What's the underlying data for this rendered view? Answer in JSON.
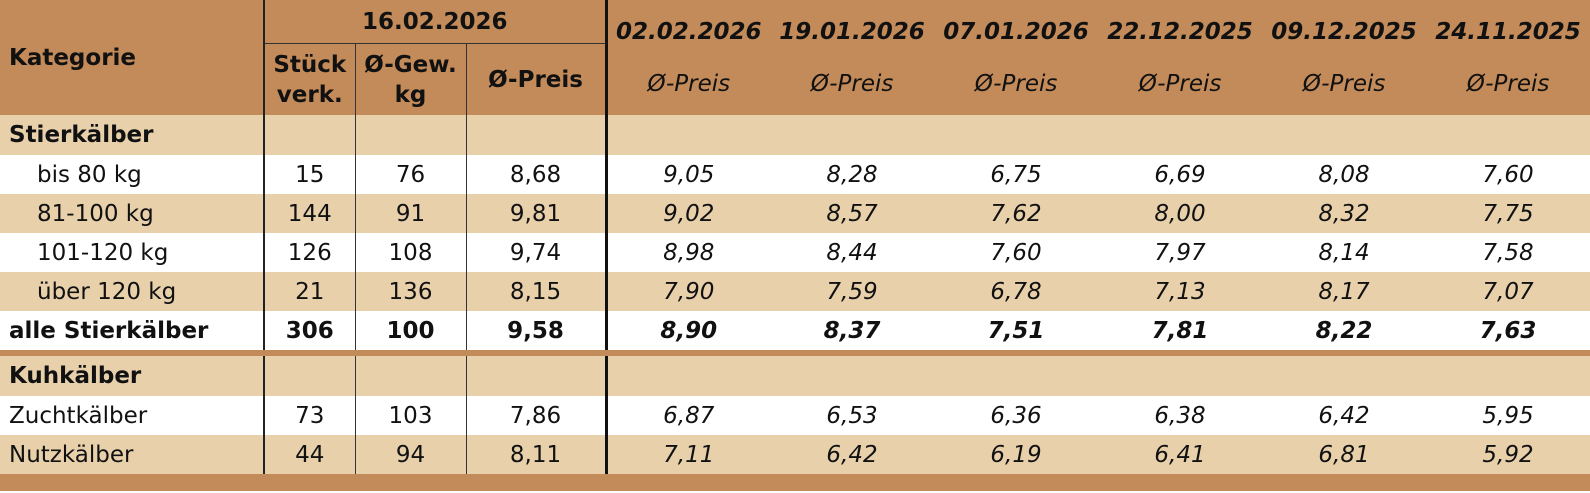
{
  "header": {
    "category": "Kategorie",
    "current_date": "16.02.2026",
    "current_columns": [
      "Stück\nverk.",
      "Ø-Gew.\nkg",
      "Ø-Preis"
    ],
    "past_columns": [
      {
        "date": "02.02.2026",
        "label": "Ø-Preis"
      },
      {
        "date": "19.01.2026",
        "label": "Ø-Preis"
      },
      {
        "date": "07.01.2026",
        "label": "Ø-Preis"
      },
      {
        "date": "22.12.2025",
        "label": "Ø-Preis"
      },
      {
        "date": "09.12.2025",
        "label": "Ø-Preis"
      },
      {
        "date": "24.11.2025",
        "label": "Ø-Preis"
      }
    ]
  },
  "sections": [
    {
      "title": "Stierkälber",
      "rows": [
        {
          "label": "bis 80 kg",
          "values": [
            "15",
            "76",
            "8,68",
            "9,05",
            "8,28",
            "6,75",
            "6,69",
            "8,08",
            "7,60"
          ]
        },
        {
          "label": "81-100 kg",
          "values": [
            "144",
            "91",
            "9,81",
            "9,02",
            "8,57",
            "7,62",
            "8,00",
            "8,32",
            "7,75"
          ]
        },
        {
          "label": "101-120 kg",
          "values": [
            "126",
            "108",
            "9,74",
            "8,98",
            "8,44",
            "7,60",
            "7,97",
            "8,14",
            "7,58"
          ]
        },
        {
          "label": "über 120 kg",
          "values": [
            "21",
            "136",
            "8,15",
            "7,90",
            "7,59",
            "6,78",
            "7,13",
            "8,17",
            "7,07"
          ]
        }
      ],
      "total": {
        "label": "alle Stierkälber",
        "values": [
          "306",
          "100",
          "9,58",
          "8,90",
          "8,37",
          "7,51",
          "7,81",
          "8,22",
          "7,63"
        ]
      }
    },
    {
      "title": "Kuhkälber",
      "rows": [
        {
          "label": "Zuchtkälber",
          "values": [
            "73",
            "103",
            "7,86",
            "6,87",
            "6,53",
            "6,36",
            "6,38",
            "6,42",
            "5,95"
          ]
        },
        {
          "label": "Nutzkälber",
          "values": [
            "44",
            "94",
            "8,11",
            "7,11",
            "6,42",
            "6,19",
            "6,41",
            "6,81",
            "5,92"
          ]
        }
      ]
    }
  ]
}
